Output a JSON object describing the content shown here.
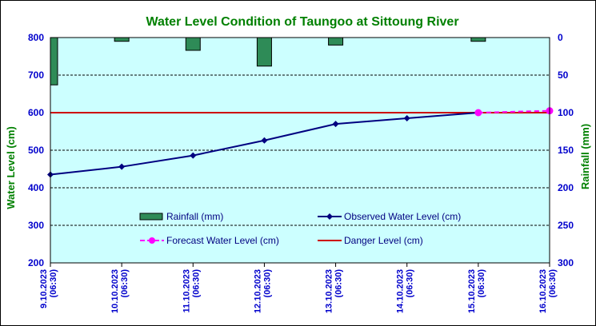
{
  "chart_data": {
    "type": "line",
    "title": "Water Level Condition  of Taungoo at  Sittoung River",
    "ylabel_left": "Water Level (cm)",
    "ylabel_right": "Rainfall (mm)",
    "ylim_left": [
      200,
      800
    ],
    "yticks_left": [
      "200",
      "300",
      "400",
      "500",
      "600",
      "700",
      "800"
    ],
    "ylim_right": [
      0,
      300
    ],
    "right_axis_inverted": true,
    "yticks_right": [
      "0",
      "50",
      "100",
      "150",
      "200",
      "250",
      "300"
    ],
    "categories": [
      "9.10.2023\n(06:30)",
      "10.10.2023\n(06:30)",
      "11.10.2023\n(06:30)",
      "12.10.2023\n(06:30)",
      "13.10.2023\n(06:30)",
      "14.10.2023\n(06:30)",
      "15.10.2023\n(06:30)",
      "16.10.2023\n(06:30)"
    ],
    "series": [
      {
        "name": "Rainfall (mm)",
        "kind": "bar",
        "axis": "right",
        "color": "#2e8b57",
        "x": [
          0,
          1,
          2,
          3,
          4,
          5,
          6,
          7
        ],
        "values": [
          63,
          5,
          17,
          38,
          10,
          0,
          5,
          0
        ]
      },
      {
        "name": "Observed Water Level (cm)",
        "kind": "line",
        "axis": "left",
        "color": "#000080",
        "x": [
          0,
          1,
          2,
          3,
          4,
          5,
          6
        ],
        "values": [
          435,
          456,
          486,
          526,
          570,
          585,
          600
        ]
      },
      {
        "name": "Forecast Water Level (cm)",
        "kind": "dashed-line",
        "axis": "left",
        "color": "#ff00ff",
        "x": [
          6,
          7
        ],
        "values": [
          600,
          605
        ]
      },
      {
        "name": "Danger Level (cm)",
        "kind": "hline",
        "axis": "left",
        "color": "#cc0000",
        "value": 600
      }
    ],
    "grid": "horizontal-dashed",
    "legend_placement": "bottom-inside",
    "plot_background": "#ccffff"
  }
}
